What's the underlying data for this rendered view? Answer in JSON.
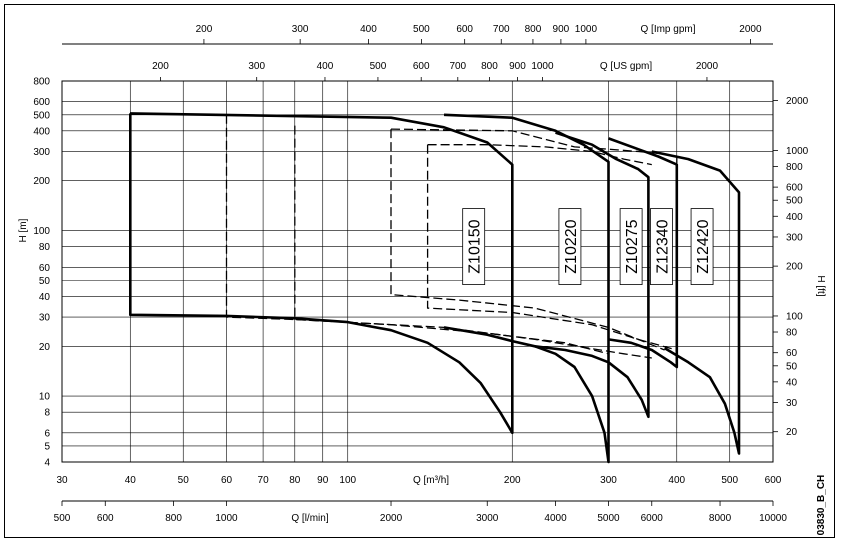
{
  "chart_data": {
    "type": "line",
    "title": "",
    "drawing_code": "03830_B_CH",
    "axes": {
      "x_m3h": {
        "label": "Q [m³/h]",
        "scale": "log",
        "range": [
          30,
          600
        ],
        "ticks": [
          30,
          40,
          50,
          60,
          70,
          80,
          90,
          100,
          200,
          300,
          400,
          500,
          600
        ],
        "tick_labels": [
          "30",
          "40",
          "50",
          "60",
          "70",
          "80",
          "90",
          "100",
          "200",
          "300",
          "400",
          "500",
          "600"
        ]
      },
      "x_lmin": {
        "label": "Q [l/min]",
        "ticks": [
          500,
          600,
          800,
          1000,
          2000,
          3000,
          4000,
          5000,
          6000,
          8000,
          10000
        ],
        "tick_labels": [
          "500",
          "600",
          "800",
          "1000",
          "2000",
          "3000",
          "4000",
          "5000",
          "6000",
          "8000",
          "10000"
        ]
      },
      "x_usgpm": {
        "label": "Q [US gpm]",
        "ticks": [
          200,
          300,
          400,
          500,
          600,
          700,
          800,
          900,
          1000,
          2000
        ],
        "tick_labels": [
          "200",
          "300",
          "400",
          "500",
          "600",
          "700",
          "800",
          "900",
          "1000",
          "2000"
        ]
      },
      "x_impgpm": {
        "label": "Q [Imp gpm]",
        "ticks": [
          200,
          300,
          400,
          500,
          600,
          700,
          800,
          900,
          1000,
          2000
        ],
        "tick_labels": [
          "200",
          "300",
          "400",
          "500",
          "600",
          "700",
          "800",
          "900",
          "1000",
          "2000"
        ]
      },
      "y_m": {
        "label": "H [m]",
        "scale": "log",
        "range": [
          4,
          800
        ],
        "ticks": [
          4,
          5,
          6,
          8,
          10,
          20,
          30,
          40,
          50,
          60,
          80,
          100,
          200,
          300,
          400,
          500,
          600,
          800
        ],
        "tick_labels": [
          "4",
          "5",
          "6",
          "8",
          "10",
          "20",
          "30",
          "40",
          "50",
          "60",
          "80",
          "100",
          "200",
          "300",
          "400",
          "500",
          "600",
          "800"
        ]
      },
      "y_ft": {
        "label": "H [ft]",
        "ticks": [
          20,
          30,
          40,
          50,
          60,
          80,
          100,
          200,
          300,
          400,
          500,
          600,
          800,
          1000,
          2000
        ],
        "tick_labels": [
          "20",
          "30",
          "40",
          "50",
          "60",
          "80",
          "100",
          "200",
          "300",
          "400",
          "500",
          "600",
          "800",
          "1000",
          "2000"
        ]
      }
    },
    "grid": true,
    "series": [
      {
        "name": "Z10150",
        "style": "solid",
        "boundary": [
          [
            40,
            510
          ],
          [
            120,
            480
          ],
          [
            150,
            420
          ],
          [
            180,
            340
          ],
          [
            200,
            250
          ],
          [
            200,
            6
          ],
          [
            190,
            8
          ],
          [
            175,
            12
          ],
          [
            160,
            16
          ],
          [
            140,
            21
          ],
          [
            120,
            25
          ],
          [
            100,
            28
          ],
          [
            80,
            29.5
          ],
          [
            60,
            30.5
          ],
          [
            40,
            31
          ],
          [
            40,
            510
          ]
        ]
      },
      {
        "name": "Z10220",
        "style": "solid",
        "boundary": [
          [
            150,
            500
          ],
          [
            200,
            480
          ],
          [
            240,
            400
          ],
          [
            270,
            330
          ],
          [
            300,
            260
          ],
          [
            300,
            4
          ],
          [
            295,
            6
          ],
          [
            280,
            10
          ],
          [
            260,
            15
          ],
          [
            240,
            18
          ],
          [
            220,
            20
          ],
          [
            200,
            21.5
          ],
          [
            180,
            23.5
          ],
          [
            150,
            26
          ]
        ]
      },
      {
        "name": "Z10275",
        "style": "solid",
        "boundary": [
          [
            240,
            390
          ],
          [
            280,
            330
          ],
          [
            310,
            270
          ],
          [
            340,
            235
          ],
          [
            355,
            210
          ],
          [
            355,
            7.5
          ],
          [
            345,
            9.5
          ],
          [
            325,
            13
          ],
          [
            300,
            16
          ],
          [
            280,
            17.5
          ],
          [
            250,
            19
          ],
          [
            220,
            20
          ]
        ]
      },
      {
        "name": "Z12340",
        "style": "solid",
        "boundary": [
          [
            300,
            360
          ],
          [
            340,
            310
          ],
          [
            370,
            280
          ],
          [
            400,
            250
          ],
          [
            400,
            15
          ],
          [
            390,
            16
          ],
          [
            360,
            19
          ],
          [
            330,
            21
          ],
          [
            300,
            22
          ]
        ]
      },
      {
        "name": "Z12420",
        "style": "solid",
        "boundary": [
          [
            360,
            300
          ],
          [
            420,
            270
          ],
          [
            480,
            230
          ],
          [
            520,
            170
          ],
          [
            520,
            4.5
          ],
          [
            510,
            6
          ],
          [
            490,
            9
          ],
          [
            460,
            13
          ],
          [
            420,
            16
          ],
          [
            380,
            19.5
          ]
        ]
      },
      {
        "name": "",
        "style": "dashed",
        "boundary": [
          [
            60,
            500
          ],
          [
            60,
            30
          ],
          [
            80,
            29
          ],
          [
            120,
            27
          ],
          [
            180,
            24
          ],
          [
            250,
            21
          ],
          [
            300,
            18
          ]
        ]
      },
      {
        "name": "",
        "style": "dashed",
        "boundary": [
          [
            80,
            430
          ],
          [
            80,
            29
          ],
          [
            150,
            26
          ],
          [
            220,
            22
          ],
          [
            320,
            18
          ],
          [
            360,
            17
          ]
        ]
      },
      {
        "name": "",
        "style": "dashed",
        "boundary": [
          [
            120,
            410
          ],
          [
            200,
            400
          ],
          [
            260,
            320
          ],
          [
            300,
            310
          ],
          [
            340,
            300
          ],
          [
            380,
            290
          ],
          [
            400,
            280
          ],
          [
            400,
            18
          ]
        ]
      },
      {
        "name": "",
        "style": "dashed",
        "boundary": [
          [
            140,
            330
          ],
          [
            180,
            330
          ],
          [
            230,
            320
          ],
          [
            280,
            300
          ],
          [
            320,
            270
          ],
          [
            360,
            250
          ]
        ]
      },
      {
        "name": "",
        "style": "dashed",
        "boundary": [
          [
            120,
            410
          ],
          [
            120,
            41
          ],
          [
            160,
            38
          ],
          [
            220,
            34
          ],
          [
            300,
            26
          ],
          [
            340,
            22
          ],
          [
            380,
            19
          ]
        ]
      },
      {
        "name": "",
        "style": "dashed",
        "boundary": [
          [
            140,
            330
          ],
          [
            140,
            34
          ],
          [
            200,
            32
          ],
          [
            280,
            27
          ],
          [
            340,
            22
          ],
          [
            400,
            19
          ]
        ]
      }
    ],
    "annotations": [
      "Z10150",
      "Z10220",
      "Z10275",
      "Z12340",
      "Z12420"
    ]
  }
}
